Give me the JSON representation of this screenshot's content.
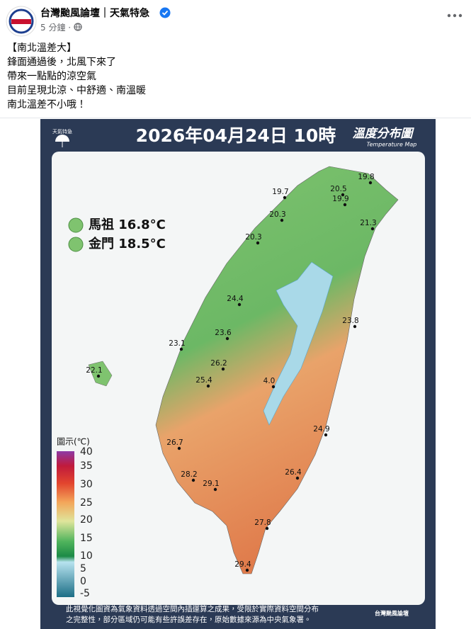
{
  "post": {
    "author": "台灣颱風論壇｜天氣特急",
    "time": "5 分鐘 ·",
    "text": [
      "【南北溫差大】",
      "鋒面通過後，北風下來了",
      "帶來一點點的涼空氣",
      "目前呈現北涼、中舒適、南溫暖",
      "南北溫差不小哦！"
    ]
  },
  "map": {
    "brand": "天氣特急",
    "title": "2026年04月24日 10時",
    "subtitle": "溫度分布圖",
    "subtitle_en": "Temperature Map",
    "islands": [
      {
        "label": "馬祖 16.8°C"
      },
      {
        "label": "金門 18.5°C"
      }
    ],
    "stations": [
      "19.8",
      "20.5",
      "19.9",
      "19.7",
      "20.3",
      "21.3",
      "20.3",
      "24.4",
      "23.8",
      "23.6",
      "23.1",
      "26.2",
      "22.1",
      "25.4",
      "4.0",
      "24.9",
      "26.7",
      "28.2",
      "29.1",
      "26.4",
      "27.8",
      "29.4"
    ],
    "legend_title": "圖示(℃)",
    "legend_ticks": [
      "40",
      "35",
      "30",
      "25",
      "20",
      "15",
      "10",
      "5",
      "0",
      "-5"
    ],
    "footer": [
      "此視覺化圖資為氣象資料透過空間內插運算之成果，受限於實際資料空間分布",
      "之完整性，部分區域仍可能有些許誤差存在，原始數據來源為中央氣象署。"
    ],
    "logo": "台灣颱風論壇"
  }
}
